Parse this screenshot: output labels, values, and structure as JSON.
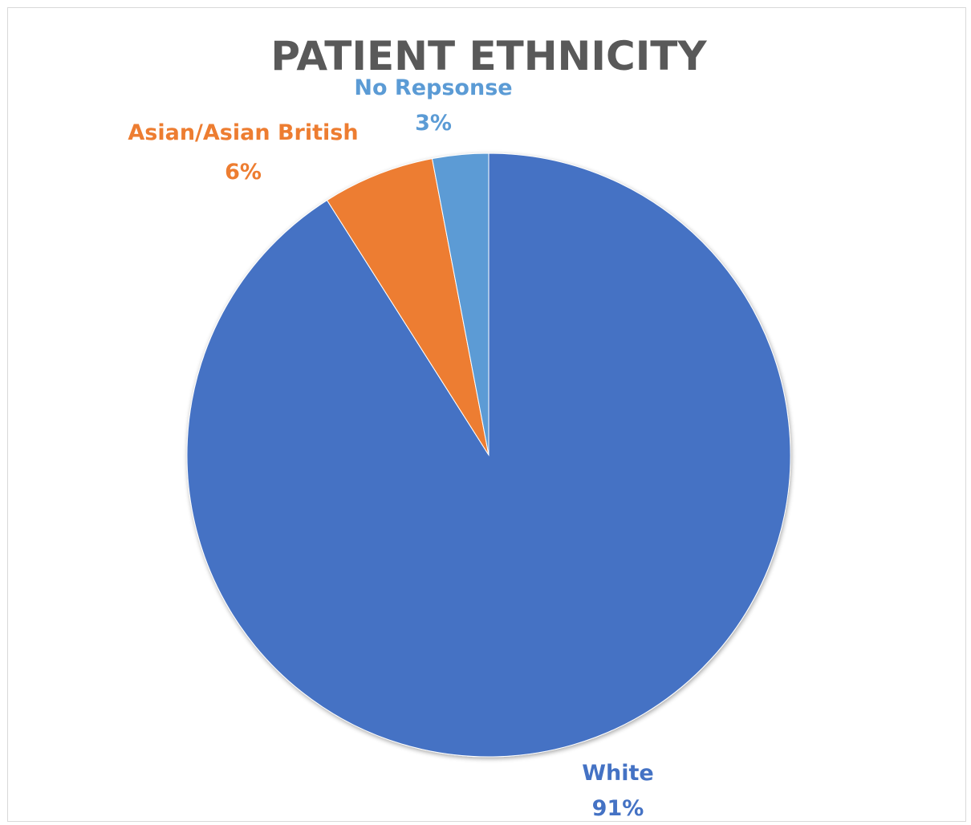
{
  "chart_data": {
    "type": "pie",
    "title": "PATIENT ETHNICITY",
    "slices": [
      {
        "label": "White",
        "value": 91,
        "pct_label": "91%",
        "color": "#4472C4"
      },
      {
        "label": "Asian/Asian British",
        "value": 6,
        "pct_label": "6%",
        "color": "#ED7D31"
      },
      {
        "label": "No Repsonse",
        "value": 3,
        "pct_label": "3%",
        "color": "#5B9BD5"
      }
    ],
    "start_angle_deg": 0,
    "direction": "clockwise",
    "legend": "none",
    "data_labels": "outside, category name and percentage"
  }
}
